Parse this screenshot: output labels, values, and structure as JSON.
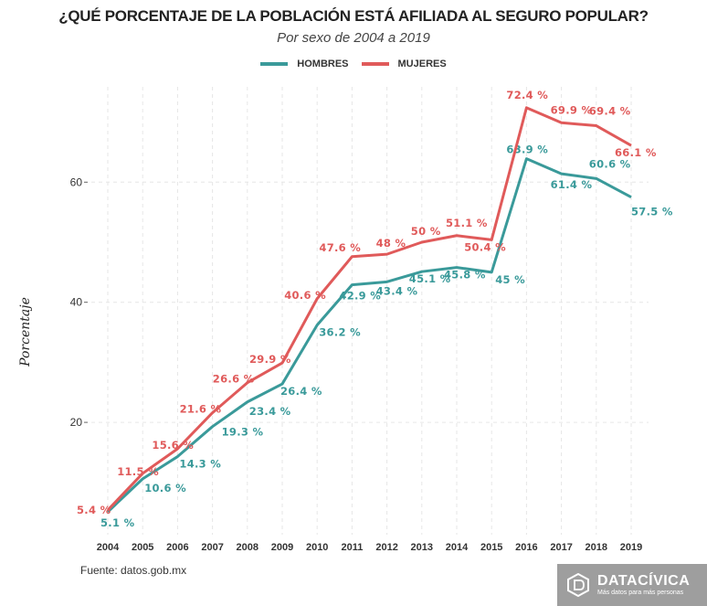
{
  "chart_data": {
    "type": "line",
    "title": "¿QUÉ PORCENTAJE DE LA POBLACIÓN ESTÁ AFILIADA AL SEGURO POPULAR?",
    "subtitle": "Por sexo de 2004 a 2019",
    "xlabel": "",
    "ylabel": "Porcentaje",
    "x": [
      2004,
      2005,
      2006,
      2007,
      2008,
      2009,
      2010,
      2011,
      2012,
      2013,
      2014,
      2015,
      2016,
      2017,
      2018,
      2019
    ],
    "yticks": [
      20,
      40,
      60
    ],
    "ylim": [
      0,
      75
    ],
    "grid": true,
    "legend_position": "top-center",
    "series": [
      {
        "name": "HOMBRES",
        "color": "#3a9a9a",
        "values": [
          5.1,
          10.6,
          14.3,
          19.3,
          23.4,
          26.4,
          36.2,
          42.9,
          43.4,
          45.1,
          45.8,
          45,
          63.9,
          61.4,
          60.6,
          57.5
        ]
      },
      {
        "name": "MUJERES",
        "color": "#e05a5a",
        "values": [
          5.4,
          11.5,
          15.6,
          21.6,
          26.6,
          29.9,
          40.6,
          47.6,
          48,
          50,
          51.1,
          50.4,
          72.4,
          69.9,
          69.4,
          66.1
        ]
      }
    ],
    "value_suffix": " %"
  },
  "footer": {
    "source": "Fuente: datos.gob.mx",
    "logo_name": "DATACÍVICA",
    "logo_tagline": "Más datos para más personas"
  }
}
